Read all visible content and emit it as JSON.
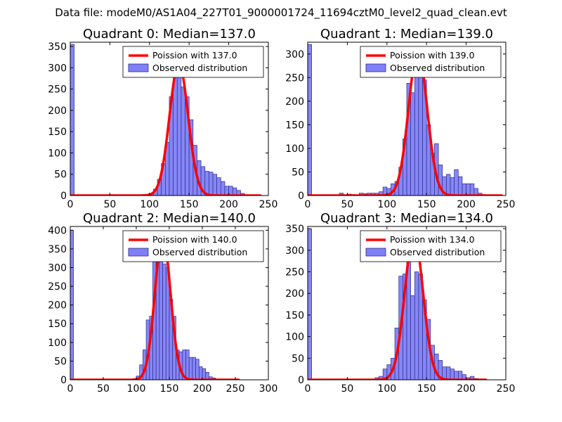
{
  "figure": {
    "suptitle": "Data file: modeM0/AS1A04_227T01_9000001724_11694cztM0_level2_quad_clean.evt"
  },
  "colors": {
    "bar_fill": "#7f7ff7",
    "bar_edge": "#2d2d8a",
    "poisson_line": "#ff0000"
  },
  "chart_data": [
    {
      "type": "bar",
      "title": "Quadrant 0: Median=137.0",
      "median": 137.0,
      "xlim": [
        0,
        250
      ],
      "ylim": [
        0,
        360
      ],
      "xticks": [
        "0",
        "50",
        "100",
        "150",
        "200",
        "250"
      ],
      "yticks": [
        "0",
        "50",
        "100",
        "150",
        "200",
        "250",
        "300",
        "350"
      ],
      "bin_width": 5,
      "bins": [
        {
          "x": 0,
          "y": 355
        },
        {
          "x": 65,
          "y": 1
        },
        {
          "x": 85,
          "y": 1
        },
        {
          "x": 95,
          "y": 2
        },
        {
          "x": 100,
          "y": 5
        },
        {
          "x": 105,
          "y": 15
        },
        {
          "x": 110,
          "y": 38
        },
        {
          "x": 115,
          "y": 75
        },
        {
          "x": 120,
          "y": 125
        },
        {
          "x": 125,
          "y": 232
        },
        {
          "x": 130,
          "y": 340
        },
        {
          "x": 135,
          "y": 305
        },
        {
          "x": 140,
          "y": 255
        },
        {
          "x": 145,
          "y": 232
        },
        {
          "x": 150,
          "y": 178
        },
        {
          "x": 155,
          "y": 118
        },
        {
          "x": 160,
          "y": 82
        },
        {
          "x": 165,
          "y": 68
        },
        {
          "x": 170,
          "y": 57
        },
        {
          "x": 175,
          "y": 55
        },
        {
          "x": 180,
          "y": 50
        },
        {
          "x": 185,
          "y": 42
        },
        {
          "x": 190,
          "y": 33
        },
        {
          "x": 195,
          "y": 22
        },
        {
          "x": 200,
          "y": 22
        },
        {
          "x": 205,
          "y": 18
        },
        {
          "x": 210,
          "y": 12
        },
        {
          "x": 215,
          "y": 5
        },
        {
          "x": 220,
          "y": 2
        },
        {
          "x": 225,
          "y": 1
        }
      ],
      "poisson": {
        "mu": 137.0,
        "peak": 310,
        "x_range": [
          0,
          240
        ]
      },
      "legend": {
        "line_label": "Poission with 137.0",
        "bar_label": "Observed distribution",
        "loc": "upper right"
      }
    },
    {
      "type": "bar",
      "title": "Quadrant 1: Median=139.0",
      "median": 139.0,
      "xlim": [
        0,
        250
      ],
      "ylim": [
        0,
        325
      ],
      "xticks": [
        "0",
        "50",
        "100",
        "150",
        "200",
        "250"
      ],
      "yticks": [
        "0",
        "50",
        "100",
        "150",
        "200",
        "250",
        "300"
      ],
      "bin_width": 5,
      "bins": [
        {
          "x": 0,
          "y": 320
        },
        {
          "x": 40,
          "y": 5
        },
        {
          "x": 50,
          "y": 3
        },
        {
          "x": 55,
          "y": 2
        },
        {
          "x": 65,
          "y": 5
        },
        {
          "x": 70,
          "y": 4
        },
        {
          "x": 75,
          "y": 5
        },
        {
          "x": 80,
          "y": 5
        },
        {
          "x": 85,
          "y": 5
        },
        {
          "x": 90,
          "y": 8
        },
        {
          "x": 95,
          "y": 18
        },
        {
          "x": 100,
          "y": 15
        },
        {
          "x": 105,
          "y": 25
        },
        {
          "x": 110,
          "y": 30
        },
        {
          "x": 115,
          "y": 60
        },
        {
          "x": 120,
          "y": 120
        },
        {
          "x": 125,
          "y": 238
        },
        {
          "x": 130,
          "y": 218
        },
        {
          "x": 135,
          "y": 290
        },
        {
          "x": 140,
          "y": 280
        },
        {
          "x": 145,
          "y": 245
        },
        {
          "x": 150,
          "y": 150
        },
        {
          "x": 155,
          "y": 90
        },
        {
          "x": 160,
          "y": 110
        },
        {
          "x": 165,
          "y": 65
        },
        {
          "x": 170,
          "y": 40
        },
        {
          "x": 175,
          "y": 45
        },
        {
          "x": 180,
          "y": 38
        },
        {
          "x": 185,
          "y": 55
        },
        {
          "x": 190,
          "y": 40
        },
        {
          "x": 195,
          "y": 25
        },
        {
          "x": 200,
          "y": 25
        },
        {
          "x": 205,
          "y": 25
        },
        {
          "x": 210,
          "y": 15
        },
        {
          "x": 215,
          "y": 5
        },
        {
          "x": 220,
          "y": 2
        }
      ],
      "poisson": {
        "mu": 139.0,
        "peak": 305,
        "x_range": [
          0,
          245
        ]
      },
      "legend": {
        "line_label": "Poission with 139.0",
        "bar_label": "Observed distribution",
        "loc": "upper right"
      }
    },
    {
      "type": "bar",
      "title": "Quadrant 2: Median=140.0",
      "median": 140.0,
      "xlim": [
        0,
        300
      ],
      "ylim": [
        0,
        410
      ],
      "xticks": [
        "0",
        "50",
        "100",
        "150",
        "200",
        "250",
        "300"
      ],
      "yticks": [
        "0",
        "50",
        "100",
        "150",
        "200",
        "250",
        "300",
        "350",
        "400"
      ],
      "bin_width": 5,
      "bins": [
        {
          "x": 0,
          "y": 400
        },
        {
          "x": 95,
          "y": 3
        },
        {
          "x": 100,
          "y": 10
        },
        {
          "x": 105,
          "y": 40
        },
        {
          "x": 110,
          "y": 80
        },
        {
          "x": 115,
          "y": 160
        },
        {
          "x": 120,
          "y": 170
        },
        {
          "x": 125,
          "y": 330
        },
        {
          "x": 130,
          "y": 345
        },
        {
          "x": 135,
          "y": 380
        },
        {
          "x": 140,
          "y": 310
        },
        {
          "x": 145,
          "y": 300
        },
        {
          "x": 150,
          "y": 215
        },
        {
          "x": 155,
          "y": 170
        },
        {
          "x": 160,
          "y": 80
        },
        {
          "x": 165,
          "y": 75
        },
        {
          "x": 170,
          "y": 80
        },
        {
          "x": 175,
          "y": 80
        },
        {
          "x": 180,
          "y": 60
        },
        {
          "x": 185,
          "y": 60
        },
        {
          "x": 190,
          "y": 55
        },
        {
          "x": 195,
          "y": 35
        },
        {
          "x": 200,
          "y": 30
        },
        {
          "x": 205,
          "y": 20
        },
        {
          "x": 210,
          "y": 8
        },
        {
          "x": 215,
          "y": 5
        }
      ],
      "poisson": {
        "mu": 140.0,
        "peak": 385,
        "x_range": [
          0,
          255
        ]
      },
      "legend": {
        "line_label": "Poission with 140.0",
        "bar_label": "Observed distribution",
        "loc": "upper right"
      }
    },
    {
      "type": "bar",
      "title": "Quadrant 3: Median=134.0",
      "median": 134.0,
      "xlim": [
        0,
        250
      ],
      "ylim": [
        0,
        355
      ],
      "xticks": [
        "0",
        "50",
        "100",
        "150",
        "200",
        "250"
      ],
      "yticks": [
        "0",
        "50",
        "100",
        "150",
        "200",
        "250",
        "300",
        "350"
      ],
      "bin_width": 5,
      "bins": [
        {
          "x": 0,
          "y": 350
        },
        {
          "x": 85,
          "y": 5
        },
        {
          "x": 90,
          "y": 8
        },
        {
          "x": 95,
          "y": 25
        },
        {
          "x": 100,
          "y": 35
        },
        {
          "x": 105,
          "y": 50
        },
        {
          "x": 110,
          "y": 120
        },
        {
          "x": 115,
          "y": 240
        },
        {
          "x": 120,
          "y": 245
        },
        {
          "x": 125,
          "y": 320
        },
        {
          "x": 130,
          "y": 195
        },
        {
          "x": 135,
          "y": 250
        },
        {
          "x": 140,
          "y": 245
        },
        {
          "x": 145,
          "y": 185
        },
        {
          "x": 150,
          "y": 140
        },
        {
          "x": 155,
          "y": 80
        },
        {
          "x": 160,
          "y": 60
        },
        {
          "x": 165,
          "y": 45
        },
        {
          "x": 170,
          "y": 30
        },
        {
          "x": 175,
          "y": 30
        },
        {
          "x": 180,
          "y": 25
        },
        {
          "x": 185,
          "y": 20
        },
        {
          "x": 190,
          "y": 20
        },
        {
          "x": 195,
          "y": 12
        },
        {
          "x": 200,
          "y": 5
        },
        {
          "x": 205,
          "y": 8
        },
        {
          "x": 210,
          "y": 3
        },
        {
          "x": 215,
          "y": 2
        }
      ],
      "poisson": {
        "mu": 134.0,
        "peak": 335,
        "x_range": [
          0,
          225
        ]
      },
      "legend": {
        "line_label": "Poission with 134.0",
        "bar_label": "Observed distribution",
        "loc": "upper right"
      }
    }
  ]
}
